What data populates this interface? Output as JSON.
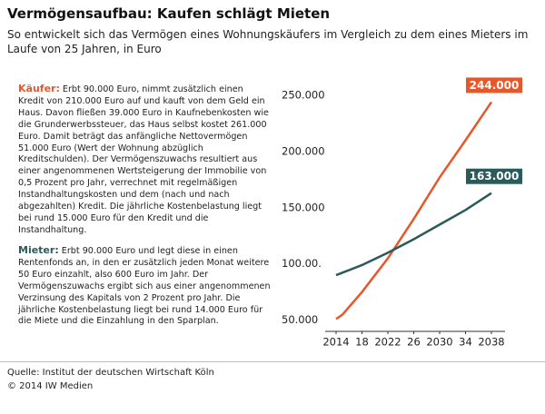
{
  "title": "Vermögensaufbau: Kaufen schlägt Mieten",
  "subtitle": "So entwickelt sich das Vermögen eines Wohnungskäufers im Vergleich zu dem eines Mieters im Laufe von 25 Jahren, in Euro",
  "paragraphs": [
    {
      "label": "Käufer:",
      "text": "Erbt 90.000 Euro, nimmt zusätzlich einen Kredit von 210.000 Euro auf und kauft von dem Geld ein Haus. Davon fließen 39.000 Euro in Kaufnebenkosten wie die Grunderwerbssteuer, das Haus selbst kostet 261.000 Euro. Damit beträgt das anfängliche Nettovermögen 51.000 Euro (Wert der Wohnung abzüglich Kreditschulden). Der Vermögenszuwachs resultiert aus einer angenommenen Wertsteigerung der Immobilie von 0,5 Prozent pro Jahr, verrechnet mit regelmäßigen Instandhaltungskosten und dem (nach und nach abgezahlten) Kredit. Die jährliche Kostenbelastung liegt bei rund 15.000 Euro für den Kredit und die Instandhaltung."
    },
    {
      "label": "Mieter:",
      "text": "Erbt 90.000 Euro und legt diese in einen Rentenfonds an, in den er zusätzlich jeden Monat weitere 50 Euro einzahlt, also 600 Euro im Jahr. Der Vermögenszuwachs ergibt sich aus einer angenommenen Verzinsung des Kapitals von 2 Prozent pro Jahr. Die jährliche Kostenbelastung liegt bei rund 14.000 Euro für die Miete und die Einzahlung in den Sparplan."
    }
  ],
  "chart_data": {
    "type": "line",
    "xlim": [
      2014,
      2038
    ],
    "xticks": [
      2014,
      {
        "value": 2018,
        "label": "18"
      },
      2022,
      {
        "value": 2026,
        "label": "26"
      },
      2030,
      {
        "value": 2034,
        "label": "34"
      },
      2038
    ],
    "ylim": [
      40000,
      250000
    ],
    "yticks": [
      {
        "value": 50000,
        "label": "50.000"
      },
      {
        "value": 100000,
        "label": "100.00."
      },
      {
        "value": 150000,
        "label": "150.000"
      },
      {
        "value": 200000,
        "label": "200.000"
      },
      {
        "value": 250000,
        "label": "250.000"
      }
    ],
    "series": [
      {
        "name": "Käufer",
        "color": "#e8572a",
        "x": [
          2014,
          2015,
          2018,
          2022,
          2026,
          2030,
          2034,
          2038
        ],
        "values": [
          51000,
          55000,
          75000,
          105000,
          140000,
          177000,
          210000,
          244000
        ],
        "end_label": "244.000"
      },
      {
        "name": "Mieter",
        "color": "#2b5a5a",
        "x": [
          2014,
          2018,
          2022,
          2026,
          2030,
          2034,
          2038
        ],
        "values": [
          90000,
          99000,
          110000,
          122000,
          135000,
          148000,
          163000
        ],
        "end_label": "163.000"
      }
    ]
  },
  "footer": {
    "source": "Quelle: Institut der deutschen Wirtschaft Köln",
    "copyright": "© 2014 IW Medien"
  }
}
